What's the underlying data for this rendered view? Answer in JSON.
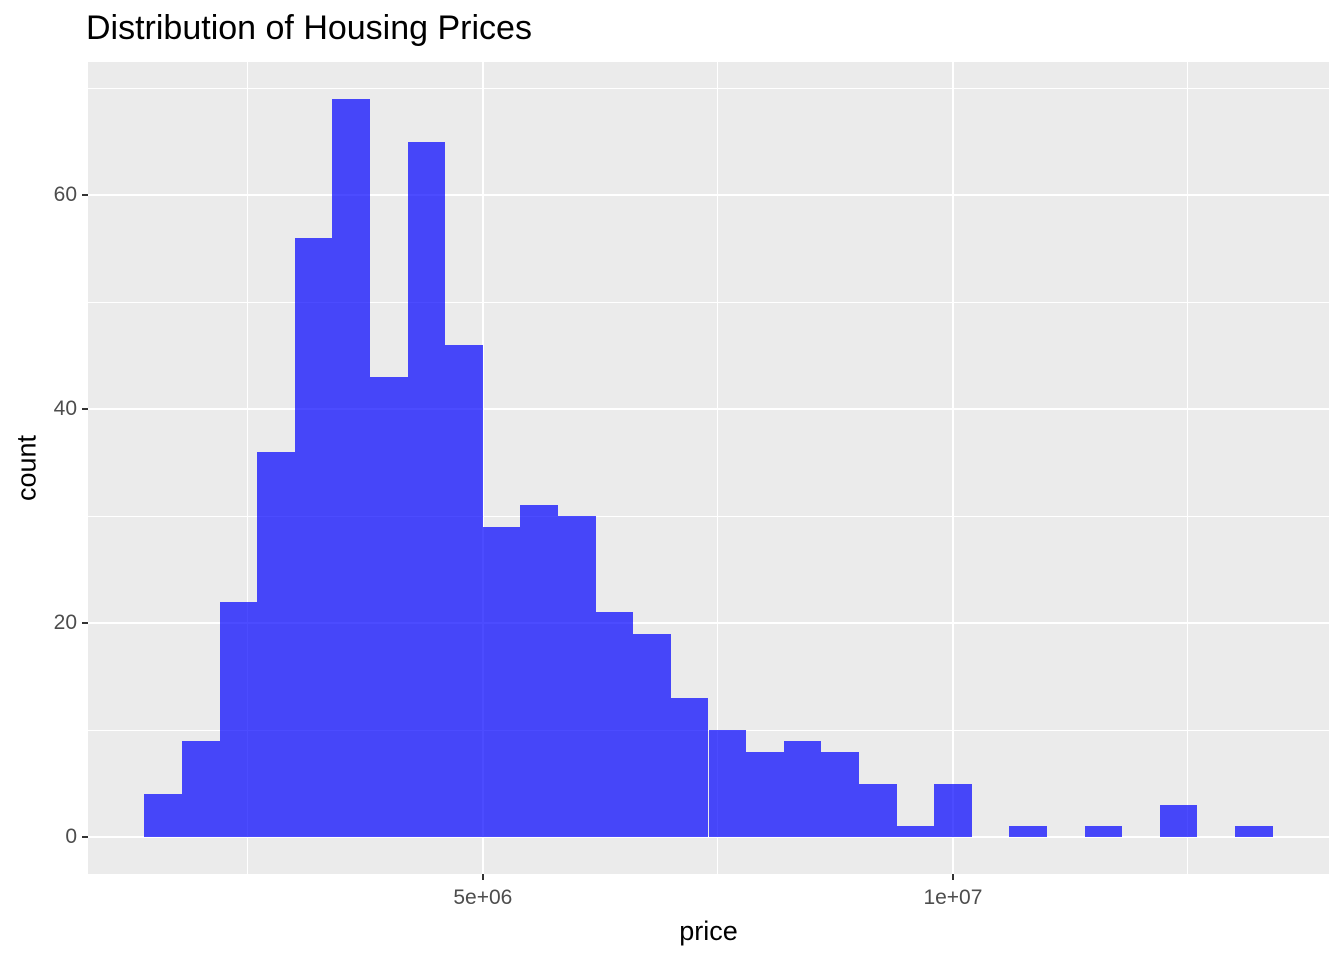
{
  "chart_data": {
    "type": "bar",
    "subtype": "histogram",
    "title": "Distribution of Housing Prices",
    "xlabel": "price",
    "ylabel": "count",
    "bin_start": 1400000,
    "bin_width": 400000,
    "counts": [
      4,
      9,
      22,
      36,
      56,
      69,
      43,
      65,
      46,
      29,
      31,
      30,
      21,
      19,
      13,
      10,
      8,
      9,
      8,
      5,
      1,
      5,
      0,
      1,
      0,
      1,
      0,
      3,
      0,
      1
    ],
    "total_n": 545,
    "x_ticks": [
      {
        "value": 5000000,
        "label": "5e+06"
      },
      {
        "value": 10000000,
        "label": "1e+07"
      }
    ],
    "x_minor_gridlines": [
      2500000,
      7500000,
      12500000
    ],
    "y_ticks": [
      {
        "value": 0,
        "label": "0"
      },
      {
        "value": 20,
        "label": "20"
      },
      {
        "value": 40,
        "label": "40"
      },
      {
        "value": 60,
        "label": "60"
      }
    ],
    "y_minor_gridlines": [
      10,
      30,
      50,
      70
    ],
    "xlim": [
      800000,
      14000000
    ],
    "ylim": [
      -3.45,
      72.45
    ],
    "grid": "on",
    "legend": "none",
    "colors": {
      "bar_fill": "rgba(0,0,255,0.7)",
      "panel_background": "#EBEBEB",
      "gridline": "#FFFFFF",
      "tick_label": "#4D4D4D",
      "tick_mark": "#333333",
      "axis_title": "#000000",
      "plot_title": "#000000",
      "figure_background": "#FFFFFF"
    }
  }
}
